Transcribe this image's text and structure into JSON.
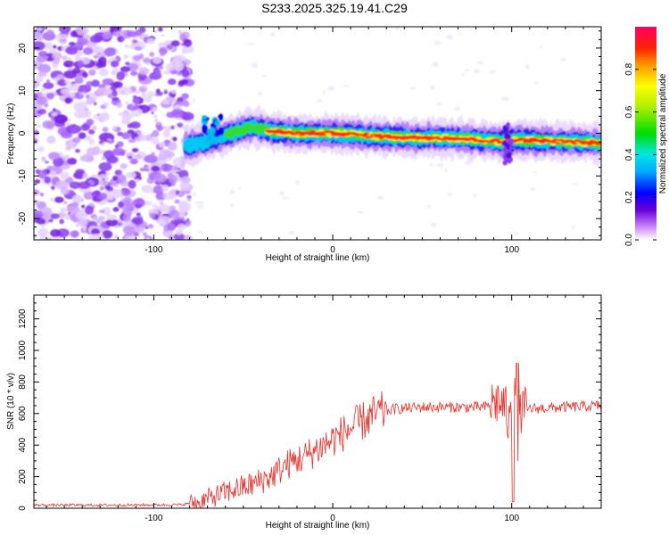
{
  "title": "S233.2025.325.19.41.C29",
  "chart_data": [
    {
      "type": "heatmap",
      "xlabel": "Height of straight line (km)",
      "ylabel": "Frequency (Hz)",
      "xlim": [
        -167,
        150
      ],
      "ylim": [
        -25,
        25
      ],
      "xticks": [
        -100,
        0,
        100
      ],
      "yticks": [
        -20,
        -10,
        0,
        10,
        20
      ],
      "colorbar": {
        "label": "Normalized spectral amplitude",
        "range": [
          0,
          1
        ],
        "ticks": [
          0.0,
          0.2,
          0.4,
          0.6,
          0.8
        ]
      },
      "noise_region": {
        "x": [
          -167,
          -80
        ],
        "y": [
          -25,
          25
        ]
      },
      "ridge": [
        {
          "x": -82,
          "y": -3
        },
        {
          "x": -70,
          "y": -2
        },
        {
          "x": -60,
          "y": -0.5
        },
        {
          "x": -45,
          "y": 1.5
        },
        {
          "x": -35,
          "y": 0.5
        },
        {
          "x": -20,
          "y": 0
        },
        {
          "x": 0,
          "y": 0
        },
        {
          "x": 20,
          "y": -0.5
        },
        {
          "x": 40,
          "y": -1
        },
        {
          "x": 60,
          "y": -1
        },
        {
          "x": 80,
          "y": -1.5
        },
        {
          "x": 95,
          "y": -2
        },
        {
          "x": 100,
          "y": -1.5
        },
        {
          "x": 120,
          "y": -1.8
        },
        {
          "x": 150,
          "y": -2.3
        }
      ]
    },
    {
      "type": "line",
      "xlabel": "Height of straight line (km)",
      "ylabel": "SNR (10 * v/v)",
      "xlim": [
        -167,
        150
      ],
      "ylim": [
        0,
        1350
      ],
      "xticks": [
        -100,
        0,
        100
      ],
      "yticks": [
        0,
        200,
        400,
        600,
        800,
        1000,
        1200
      ],
      "color": "#e8302a",
      "series": [
        {
          "x": [
            -167,
            -120,
            -85,
            -75,
            -65,
            -55,
            -45,
            -35,
            -25,
            -15,
            -5,
            5,
            15,
            25,
            35,
            50,
            70,
            85,
            92,
            96,
            99,
            101,
            103,
            106,
            110,
            130,
            150
          ],
          "values": [
            20,
            20,
            22,
            40,
            80,
            120,
            150,
            200,
            280,
            330,
            400,
            470,
            540,
            600,
            630,
            640,
            640,
            640,
            680,
            650,
            500,
            900,
            580,
            620,
            630,
            640,
            650
          ]
        }
      ]
    }
  ]
}
